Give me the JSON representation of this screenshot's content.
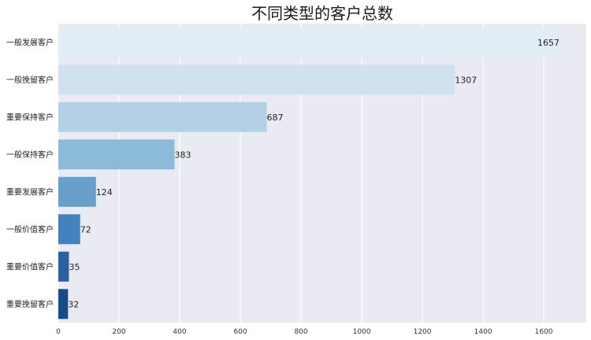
{
  "chart_data": {
    "type": "bar",
    "orientation": "horizontal",
    "title": "不同类型的客户总数",
    "xlabel": "",
    "ylabel": "",
    "categories": [
      "一般发展客户",
      "一般挽留客户",
      "重要保持客户",
      "一般保持客户",
      "重要发展客户",
      "一般价值客户",
      "重要价值客户",
      "重要挽留客户"
    ],
    "values": [
      1657,
      1307,
      687,
      383,
      124,
      72,
      35,
      32
    ],
    "xlim": [
      0,
      1740
    ],
    "xticks": [
      0,
      200,
      400,
      600,
      800,
      1000,
      1200,
      1400,
      1600
    ],
    "grid": true,
    "colors": [
      "#e3edf8",
      "#cfe0ee",
      "#b3d1e4",
      "#8cbbda",
      "#66a0cb",
      "#4282bd",
      "#2862a5",
      "#154c8c"
    ],
    "background": "#eaeaf2",
    "grid_color": "#ffffff"
  }
}
